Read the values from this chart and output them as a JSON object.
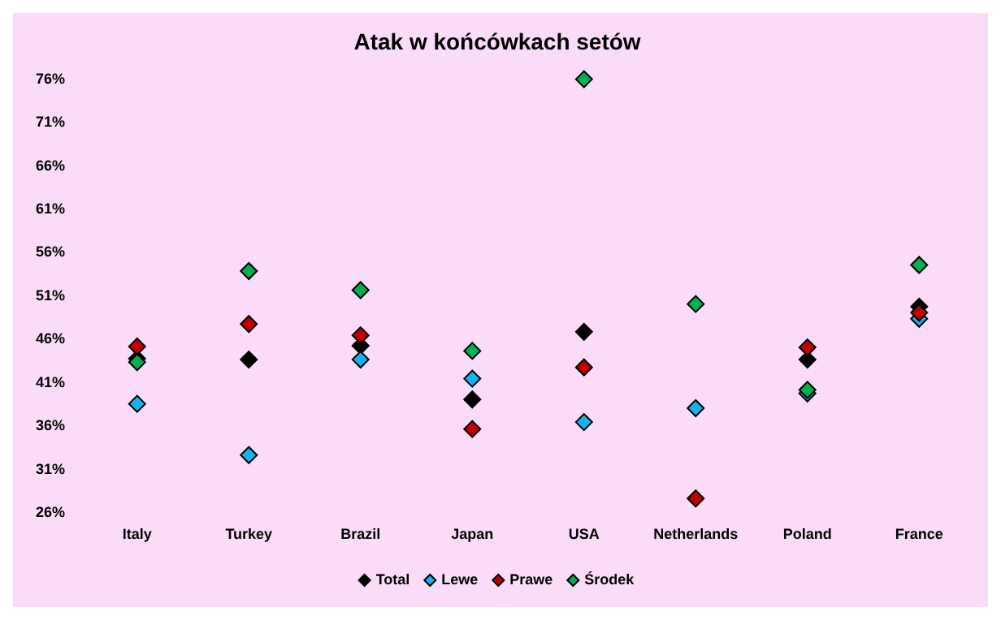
{
  "chart_data": {
    "type": "scatter",
    "title": "Atak w końcówkach setów",
    "categories": [
      "Italy",
      "Turkey",
      "Brazil",
      "Japan",
      "USA",
      "Netherlands",
      "Poland",
      "France"
    ],
    "series": [
      {
        "name": "Total",
        "color": "#000000",
        "values": [
          43.8,
          43.7,
          45.3,
          39.1,
          46.9,
          null,
          43.7,
          49.8
        ]
      },
      {
        "name": "Lewe",
        "color": "#1ab0f0",
        "values": [
          38.6,
          32.7,
          43.7,
          41.5,
          36.5,
          38.1,
          39.8,
          48.4
        ]
      },
      {
        "name": "Prawe",
        "color": "#c00000",
        "values": [
          45.2,
          47.8,
          46.5,
          35.7,
          42.8,
          27.7,
          45.1,
          49.1
        ]
      },
      {
        "name": "Środek",
        "color": "#00b050",
        "values": [
          43.4,
          53.9,
          51.7,
          44.7,
          76,
          50.1,
          40.2,
          54.6
        ]
      }
    ],
    "ylim": [
      26,
      76
    ],
    "yticks": [
      {
        "value": 26,
        "label": "26%"
      },
      {
        "value": 31,
        "label": "31%"
      },
      {
        "value": 36,
        "label": "36%"
      },
      {
        "value": 41,
        "label": "41%"
      },
      {
        "value": 46,
        "label": "46%"
      },
      {
        "value": 51,
        "label": "51%"
      },
      {
        "value": 56,
        "label": "56%"
      },
      {
        "value": 61,
        "label": "61%"
      },
      {
        "value": 66,
        "label": "66%"
      },
      {
        "value": 71,
        "label": "71%"
      },
      {
        "value": 76,
        "label": "76%"
      }
    ],
    "grid": false,
    "legend": "bottom",
    "marker": "diamond"
  }
}
